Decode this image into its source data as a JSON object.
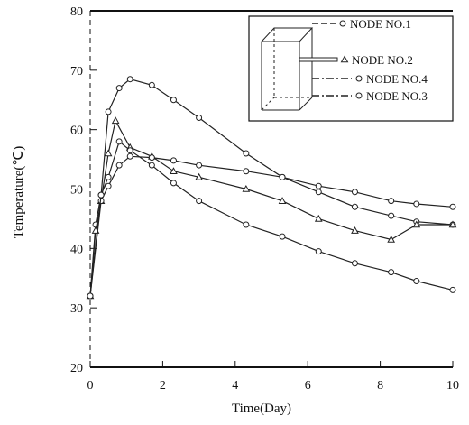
{
  "chart_data": {
    "type": "line",
    "xlabel": "Time(Day)",
    "ylabel": "Temperature(℃)",
    "xlim": [
      0,
      10
    ],
    "ylim": [
      20,
      80
    ],
    "xticks": [
      "0",
      "2",
      "4",
      "6",
      "8",
      "10"
    ],
    "yticks": [
      "20",
      "30",
      "40",
      "50",
      "60",
      "70",
      "80"
    ],
    "grid": false,
    "legend_position": "top-right",
    "series": [
      {
        "name": "NODE NO.1",
        "marker": "circle",
        "x": [
          0,
          0.15,
          0.3,
          0.5,
          0.8,
          1.1,
          1.7,
          2.3,
          3.0,
          4.3,
          5.3,
          6.3,
          7.3,
          8.3,
          9.0,
          10.0
        ],
        "y": [
          32,
          44,
          49,
          63,
          67,
          68.5,
          67.5,
          65,
          62,
          56,
          52,
          49.5,
          47,
          45.5,
          44.5,
          44
        ]
      },
      {
        "name": "NODE NO.2",
        "marker": "triangle",
        "x": [
          0,
          0.15,
          0.3,
          0.5,
          0.7,
          1.1,
          1.7,
          2.3,
          3.0,
          4.3,
          5.3,
          6.3,
          7.3,
          8.3,
          9.0,
          10.0
        ],
        "y": [
          32,
          43,
          48,
          56,
          61.5,
          57,
          55.5,
          53,
          52,
          50,
          48,
          45,
          43,
          41.5,
          44,
          44
        ]
      },
      {
        "name": "NODE NO.4",
        "marker": "circle",
        "x": [
          0,
          0.3,
          0.5,
          0.8,
          1.1,
          1.7,
          2.3,
          3.0,
          4.3,
          5.3,
          6.3,
          7.3,
          8.3,
          9.0,
          10.0
        ],
        "y": [
          32,
          48,
          50.5,
          54,
          55.5,
          55.3,
          54.8,
          54,
          53,
          52,
          50.5,
          49.5,
          48,
          47.5,
          47
        ]
      },
      {
        "name": "NODE NO.3",
        "marker": "circle",
        "x": [
          0,
          0.3,
          0.5,
          0.8,
          1.1,
          1.7,
          2.3,
          3.0,
          4.3,
          5.3,
          6.3,
          7.3,
          8.3,
          9.0,
          10.0
        ],
        "y": [
          32,
          49,
          52,
          58,
          56.5,
          54,
          51,
          48,
          44,
          42,
          39.5,
          37.5,
          36,
          34.5,
          33
        ]
      }
    ]
  }
}
